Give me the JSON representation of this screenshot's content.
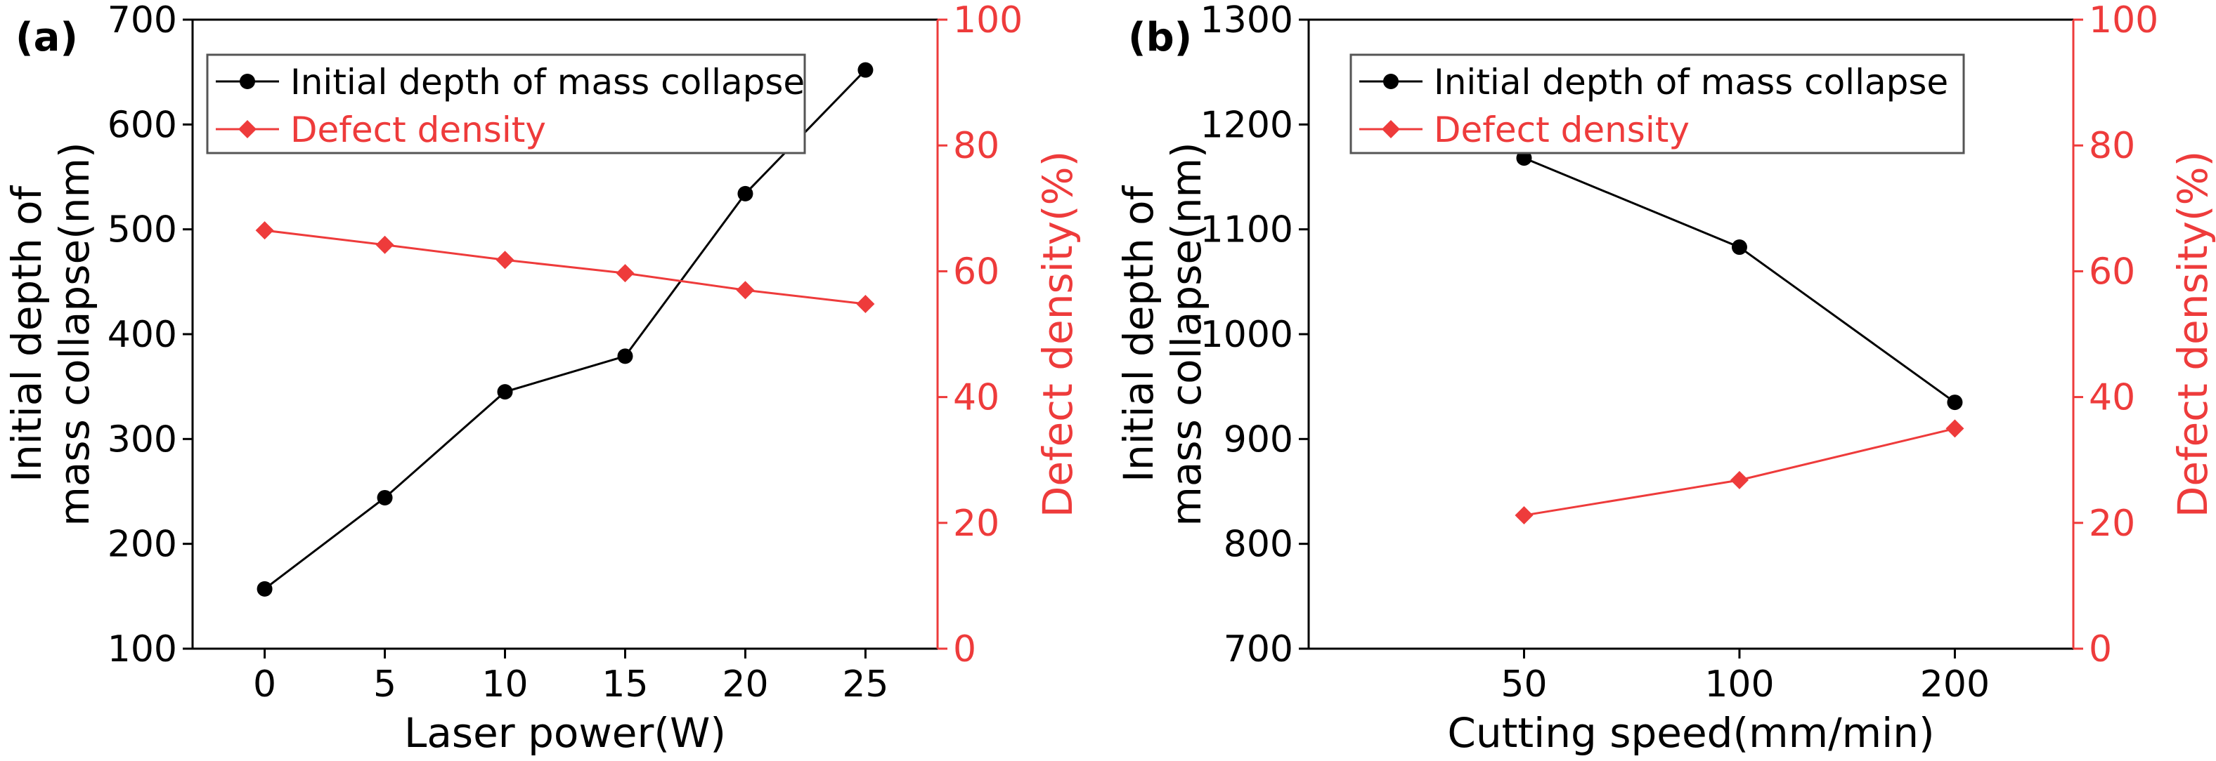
{
  "colors": {
    "left_series": "#000000",
    "right_series": "#ee3b3b",
    "axis": "#000000"
  },
  "chart_data": [
    {
      "type": "line",
      "panel_label": "(a)",
      "x": [
        0,
        5,
        10,
        15,
        20,
        25
      ],
      "xlim": [
        -3,
        28
      ],
      "xticks": [
        0,
        5,
        10,
        15,
        20,
        25
      ],
      "xlabel": "Laser power(W)",
      "ylabel_lines": [
        "Initial depth of",
        "mass collapse(nm)"
      ],
      "ylim": [
        100,
        700
      ],
      "yticks": [
        100,
        200,
        300,
        400,
        500,
        600,
        700
      ],
      "y2label": "Defect density(%)",
      "y2lim": [
        0,
        100
      ],
      "y2ticks": [
        0,
        20,
        40,
        60,
        80,
        100
      ],
      "series": [
        {
          "name": "Initial depth of mass collapse",
          "axis": "left",
          "marker": "circle",
          "values": [
            157,
            244,
            345,
            379,
            534,
            652
          ]
        },
        {
          "name": "Defect density",
          "axis": "right",
          "marker": "diamond",
          "values": [
            66.5,
            64.2,
            61.8,
            59.7,
            57.0,
            54.8
          ]
        }
      ]
    },
    {
      "type": "line",
      "panel_label": "(b)",
      "x": [
        1,
        2,
        3
      ],
      "xlim": [
        0.0,
        3.55
      ],
      "xtick_labels": [
        "50",
        "100",
        "200"
      ],
      "xticks": [
        1,
        2,
        3
      ],
      "xlabel": "Cutting speed(mm/min)",
      "ylabel_lines": [
        "Initial depth of",
        "mass collapse(nm)"
      ],
      "ylim": [
        700,
        1300
      ],
      "yticks": [
        700,
        800,
        900,
        1000,
        1100,
        1200,
        1300
      ],
      "y2label": "Defect density(%)",
      "y2lim": [
        0,
        100
      ],
      "y2ticks": [
        0,
        20,
        40,
        60,
        80,
        100
      ],
      "series": [
        {
          "name": "Initial depth of mass collapse",
          "axis": "left",
          "marker": "circle",
          "values": [
            1168,
            1083,
            935
          ]
        },
        {
          "name": "Defect density",
          "axis": "right",
          "marker": "diamond",
          "values": [
            21.2,
            26.8,
            35.0
          ]
        }
      ]
    }
  ]
}
